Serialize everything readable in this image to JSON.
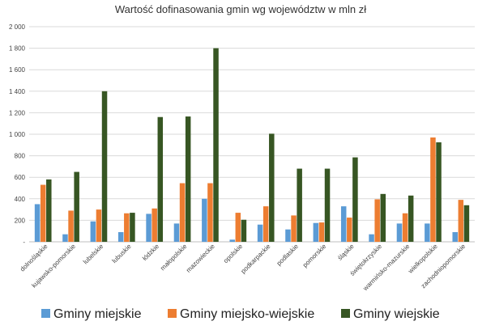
{
  "chart_data": {
    "type": "bar",
    "title": "Wartość dofinasowania gmin wg województw w mln zł",
    "xlabel": "",
    "ylabel": "",
    "ylim": [
      0,
      2000
    ],
    "yticks": [
      0,
      200,
      400,
      600,
      800,
      1000,
      1200,
      1400,
      1600,
      1800,
      2000
    ],
    "ytick_labels": [
      "-",
      "200",
      "400",
      "600",
      "800",
      "1 000",
      "1 200",
      "1 400",
      "1 600",
      "1 800",
      "2 000"
    ],
    "grid": true,
    "legend_position": "bottom",
    "categories": [
      "dolnośląskie",
      "kujawsko-pomorskie",
      "lubelskie",
      "lubuskie",
      "łódzkie",
      "małopolskie",
      "mazowieckie",
      "opolskie",
      "podkarpackie",
      "podlaskie",
      "pomorskie",
      "śląskie",
      "świętokrzyskie",
      "warmińsko-mazurskie",
      "wielkopolskie",
      "zachodniopomorskie"
    ],
    "series": [
      {
        "name": "Gminy miejskie",
        "color": "#5b9bd5",
        "values": [
          350,
          70,
          190,
          90,
          260,
          170,
          400,
          20,
          160,
          115,
          175,
          330,
          70,
          170,
          170,
          90
        ]
      },
      {
        "name": "Gminy miejsko-wiejskie",
        "color": "#ed7d31",
        "values": [
          530,
          290,
          300,
          265,
          310,
          545,
          545,
          270,
          330,
          245,
          180,
          225,
          395,
          265,
          970,
          390
        ]
      },
      {
        "name": "Gminy wiejskie",
        "color": "#375623",
        "values": [
          580,
          650,
          1400,
          270,
          1160,
          1165,
          1800,
          205,
          1005,
          680,
          680,
          785,
          445,
          430,
          925,
          340
        ]
      }
    ]
  }
}
